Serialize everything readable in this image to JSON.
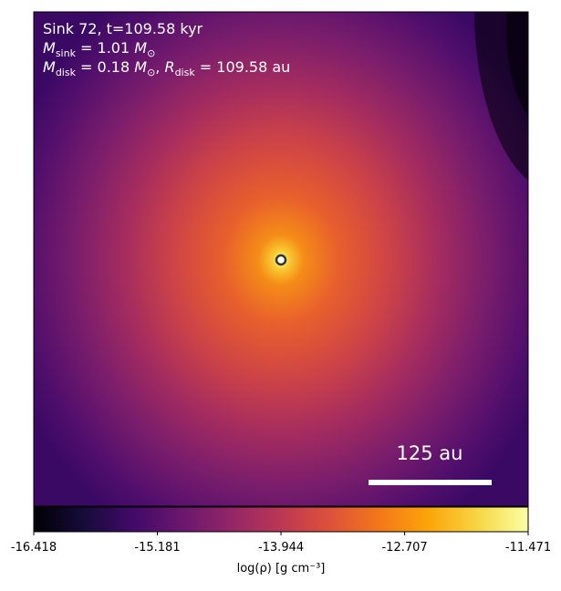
{
  "chart_data": {
    "type": "density-map",
    "annotations": [
      [
        {
          "text": "Sink 72, t=109.58 kyr"
        }
      ],
      [
        {
          "text": "M",
          "style": "italic"
        },
        {
          "text": "sink",
          "style": "sub"
        },
        {
          "text": " = 1.01 "
        },
        {
          "text": "M",
          "style": "italic"
        },
        {
          "text": "⊙",
          "style": "sub"
        }
      ],
      [
        {
          "text": "M",
          "style": "italic"
        },
        {
          "text": "disk",
          "style": "sub"
        },
        {
          "text": " = 0.18 "
        },
        {
          "text": "M",
          "style": "italic"
        },
        {
          "text": "⊙",
          "style": "sub"
        },
        {
          "text": ", "
        },
        {
          "text": "R",
          "style": "italic"
        },
        {
          "text": "disk",
          "style": "sub"
        },
        {
          "text": " = 109.58 au"
        }
      ]
    ],
    "scale_bar": "125 au",
    "colorbar": {
      "label": "log(ρ) [g cm⁻³]",
      "lim": [
        -16.418,
        -11.471
      ],
      "ticks": [
        -16.418,
        -15.181,
        -13.944,
        -12.707,
        -11.471
      ],
      "colormap": "inferno"
    }
  }
}
